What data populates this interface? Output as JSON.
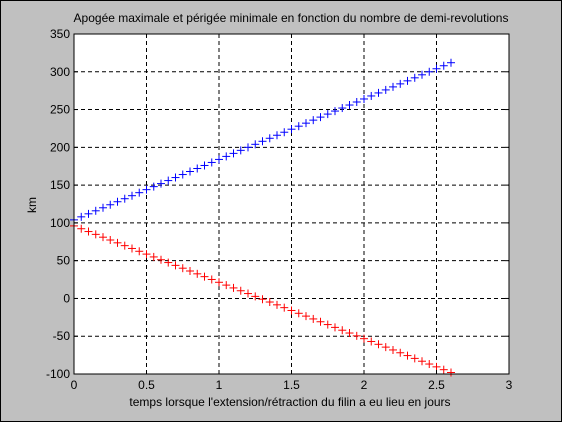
{
  "chart_data": {
    "type": "scatter",
    "title": "Apogée maximale et périgée minimale en fonction du nombre de demi-revolutions",
    "xlabel": "temps lorsque l'extension/rétraction du filin a eu lieu en jours",
    "ylabel": "km",
    "xlim": [
      0,
      3
    ],
    "ylim": [
      -100,
      350
    ],
    "xticks": [
      0,
      0.5,
      1,
      1.5,
      2,
      2.5,
      3
    ],
    "yticks": [
      -100,
      -50,
      0,
      50,
      100,
      150,
      200,
      250,
      300,
      350
    ],
    "xtick_labels": [
      "0",
      "0.5",
      "1",
      "1.5",
      "2",
      "2.5",
      "3"
    ],
    "ytick_labels": [
      "-100",
      "-50",
      "0",
      "50",
      "100",
      "150",
      "200",
      "250",
      "300",
      "350"
    ],
    "grid": true,
    "marker": "+",
    "series": [
      {
        "color": "#0000ff",
        "x_start": 0,
        "x_end": 2.6,
        "x_step": 0.05,
        "y_start": 104,
        "y_end": 312
      },
      {
        "color": "#ff0000",
        "x_start": 0,
        "x_end": 2.6,
        "x_step": 0.05,
        "y_start": 96,
        "y_end": -98
      }
    ]
  }
}
